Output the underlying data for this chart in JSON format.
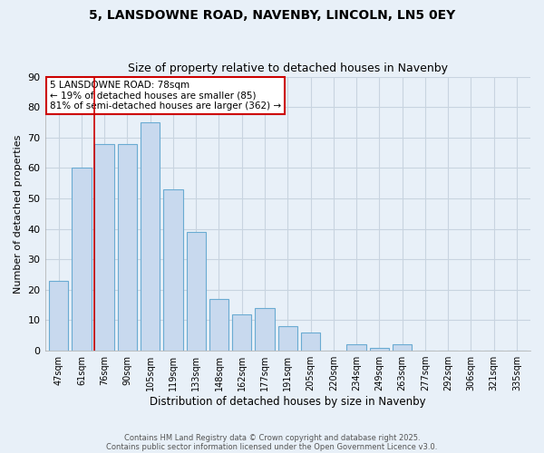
{
  "title1": "5, LANSDOWNE ROAD, NAVENBY, LINCOLN, LN5 0EY",
  "title2": "Size of property relative to detached houses in Navenby",
  "xlabel": "Distribution of detached houses by size in Navenby",
  "ylabel": "Number of detached properties",
  "categories": [
    "47sqm",
    "61sqm",
    "76sqm",
    "90sqm",
    "105sqm",
    "119sqm",
    "133sqm",
    "148sqm",
    "162sqm",
    "177sqm",
    "191sqm",
    "205sqm",
    "220sqm",
    "234sqm",
    "249sqm",
    "263sqm",
    "277sqm",
    "292sqm",
    "306sqm",
    "321sqm",
    "335sqm"
  ],
  "values": [
    23,
    60,
    68,
    68,
    75,
    53,
    39,
    17,
    12,
    14,
    8,
    6,
    0,
    2,
    1,
    2,
    0,
    0,
    0,
    0,
    0
  ],
  "bar_color": "#c8d9ee",
  "bar_edge_color": "#6aabd2",
  "vline_x": 2,
  "vline_color": "#cc0000",
  "ylim": [
    0,
    90
  ],
  "yticks": [
    0,
    10,
    20,
    30,
    40,
    50,
    60,
    70,
    80,
    90
  ],
  "annotation_title": "5 LANSDOWNE ROAD: 78sqm",
  "annotation_line2": "← 19% of detached houses are smaller (85)",
  "annotation_line3": "81% of semi-detached houses are larger (362) →",
  "annotation_box_color": "#ffffff",
  "annotation_box_edge": "#cc0000",
  "background_color": "#e8f0f8",
  "grid_color": "#c8d4e0",
  "footer1": "Contains HM Land Registry data © Crown copyright and database right 2025.",
  "footer2": "Contains public sector information licensed under the Open Government Licence v3.0."
}
